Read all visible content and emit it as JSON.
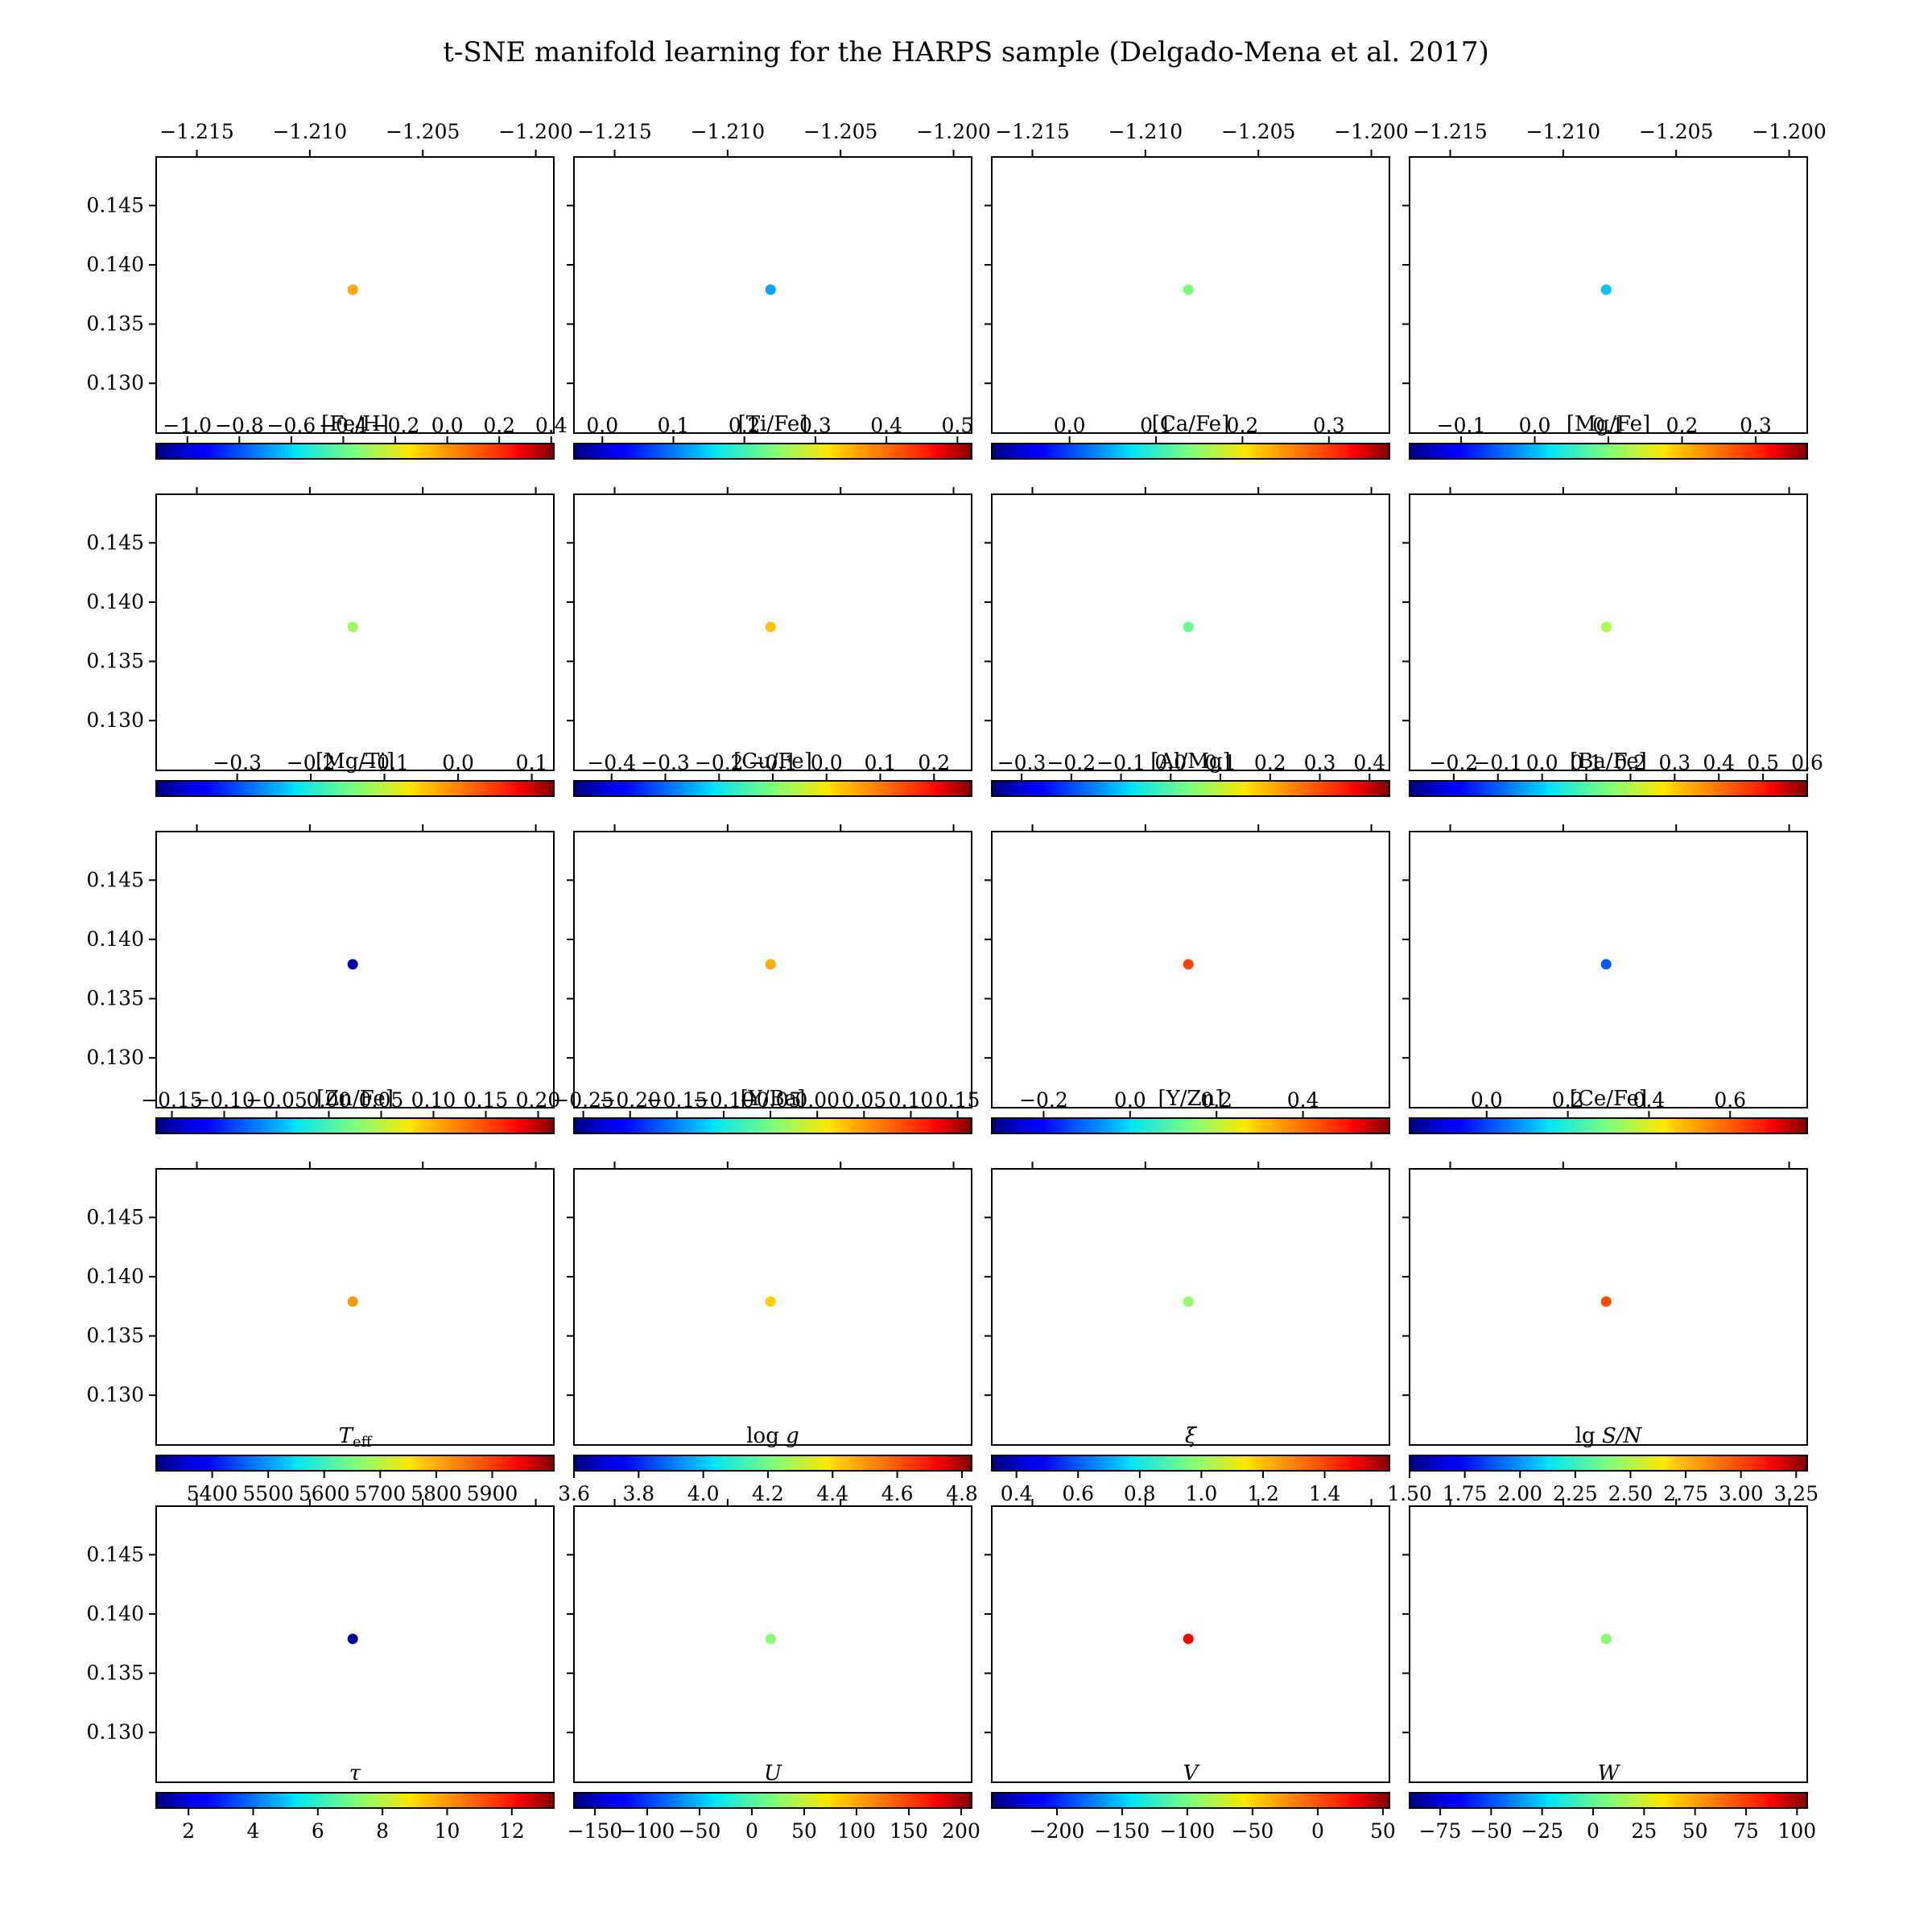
{
  "chart_data": {
    "type": "scatter",
    "title": "t-SNE manifold learning for the HARPS sample (Delgado-Mena et al. 2017)",
    "colormap": "jet",
    "x_ticks": [
      -1.215,
      -1.21,
      -1.205,
      -1.2
    ],
    "x_tick_labels": [
      "−1.215",
      "−1.210",
      "−1.205",
      "−1.200"
    ],
    "y_ticks": [
      0.13,
      0.135,
      0.14,
      0.145
    ],
    "y_tick_labels": [
      "0.130",
      "0.135",
      "0.140",
      "0.145"
    ],
    "xlim": [
      -1.2168,
      -1.1992
    ],
    "ylim": [
      0.1258,
      0.1491
    ],
    "point": {
      "x": -1.2081,
      "y": 0.1379
    },
    "panels": [
      {
        "label": "[Fe/H]",
        "color_value": 0.0,
        "cbar_range": [
          -1.12,
          0.41
        ],
        "cbar_ticks": [
          -1.0,
          -0.8,
          -0.6,
          -0.4,
          -0.2,
          0.0,
          0.2,
          0.4
        ],
        "cbar_tick_labels": [
          "−1.0",
          "−0.8",
          "−0.6",
          "−0.4",
          "−0.2",
          "0.0",
          "0.2",
          "0.4"
        ]
      },
      {
        "label": "[Ti/Fe]",
        "color_value": 0.12,
        "cbar_range": [
          -0.04,
          0.52
        ],
        "cbar_ticks": [
          0.0,
          0.1,
          0.2,
          0.3,
          0.4,
          0.5
        ],
        "cbar_tick_labels": [
          "0.0",
          "0.1",
          "0.2",
          "0.3",
          "0.4",
          "0.5"
        ]
      },
      {
        "label": "[Ca/Fe]",
        "color_value": 0.14,
        "cbar_range": [
          -0.09,
          0.37
        ],
        "cbar_ticks": [
          0.0,
          0.1,
          0.2,
          0.3
        ],
        "cbar_tick_labels": [
          "0.0",
          "0.1",
          "0.2",
          "0.3"
        ]
      },
      {
        "label": "[Mg/Fe]",
        "color_value": 0.0,
        "cbar_range": [
          -0.17,
          0.37
        ],
        "cbar_ticks": [
          -0.1,
          0.0,
          0.1,
          0.2,
          0.3
        ],
        "cbar_tick_labels": [
          "−0.1",
          "0.0",
          "0.1",
          "0.2",
          "0.3"
        ]
      },
      {
        "label": "[Mg/Ti]",
        "color_value": -0.12,
        "cbar_range": [
          -0.41,
          0.13
        ],
        "cbar_ticks": [
          -0.3,
          -0.2,
          -0.1,
          0.0,
          0.1
        ],
        "cbar_tick_labels": [
          "−0.3",
          "−0.2",
          "−0.1",
          "0.0",
          "0.1"
        ]
      },
      {
        "label": "[Cu/Fe]",
        "color_value": 0.05,
        "cbar_range": [
          -0.47,
          0.27
        ],
        "cbar_ticks": [
          -0.4,
          -0.3,
          -0.2,
          -0.1,
          0.0,
          0.1,
          0.2
        ],
        "cbar_tick_labels": [
          "−0.4",
          "−0.3",
          "−0.2",
          "−0.1",
          "0.0",
          "0.1",
          "0.2"
        ]
      },
      {
        "label": "[Al/Mg]",
        "color_value": 0.02,
        "cbar_range": [
          -0.36,
          0.44
        ],
        "cbar_ticks": [
          -0.3,
          -0.2,
          -0.1,
          0.0,
          0.1,
          0.2,
          0.3,
          0.4
        ],
        "cbar_tick_labels": [
          "−0.3",
          "−0.2",
          "−0.1",
          "0.0",
          "0.1",
          "0.2",
          "0.3",
          "0.4"
        ]
      },
      {
        "label": "[Ba/Fe]",
        "color_value": 0.2,
        "cbar_range": [
          -0.3,
          0.6
        ],
        "cbar_ticks": [
          -0.2,
          -0.1,
          0.0,
          0.1,
          0.2,
          0.3,
          0.4,
          0.5,
          0.6
        ],
        "cbar_tick_labels": [
          "−0.2",
          "−0.1",
          "0.0",
          "0.1",
          "0.2",
          "0.3",
          "0.4",
          "0.5",
          "0.6"
        ]
      },
      {
        "label": "[Zn/Fe]",
        "color_value": -0.15,
        "cbar_range": [
          -0.165,
          0.215
        ],
        "cbar_ticks": [
          -0.15,
          -0.1,
          -0.05,
          0.0,
          0.05,
          0.1,
          0.15,
          0.2
        ],
        "cbar_tick_labels": [
          "−0.15",
          "−0.10",
          "−0.05",
          "0.00",
          "0.05",
          "0.10",
          "0.15",
          "0.20"
        ]
      },
      {
        "label": "[Y/Ba]",
        "color_value": 0.05,
        "cbar_range": [
          -0.26,
          0.165
        ],
        "cbar_ticks": [
          -0.25,
          -0.2,
          -0.15,
          -0.1,
          -0.05,
          0.0,
          0.05,
          0.1,
          0.15
        ],
        "cbar_tick_labels": [
          "−0.25",
          "−0.20",
          "−0.15",
          "−0.10",
          "−0.05",
          "0.00",
          "0.05",
          "0.10",
          "0.15"
        ]
      },
      {
        "label": "[Y/Zn]",
        "color_value": 0.45,
        "cbar_range": [
          -0.32,
          0.6
        ],
        "cbar_ticks": [
          -0.2,
          0.0,
          0.2,
          0.4
        ],
        "cbar_tick_labels": [
          "−0.2",
          "0.0",
          "0.2",
          "0.4"
        ]
      },
      {
        "label": "[Ce/Fe]",
        "color_value": 0.02,
        "cbar_range": [
          -0.19,
          0.79
        ],
        "cbar_ticks": [
          0.0,
          0.2,
          0.4,
          0.6
        ],
        "cbar_tick_labels": [
          "0.0",
          "0.2",
          "0.4",
          "0.6"
        ]
      },
      {
        "label": "T_eff",
        "color_value": 5830,
        "cbar_range": [
          5300,
          6010
        ],
        "cbar_ticks": [
          5400,
          5500,
          5600,
          5700,
          5800,
          5900
        ],
        "cbar_tick_labels": [
          "5400",
          "5500",
          "5600",
          "5700",
          "5800",
          "5900"
        ]
      },
      {
        "label": "log g",
        "color_value": 4.45,
        "cbar_range": [
          3.6,
          4.83
        ],
        "cbar_ticks": [
          3.6,
          3.8,
          4.0,
          4.2,
          4.4,
          4.6,
          4.8
        ],
        "cbar_tick_labels": [
          "3.6",
          "3.8",
          "4.0",
          "4.2",
          "4.4",
          "4.6",
          "4.8"
        ]
      },
      {
        "label": "ξ",
        "color_value": 1.0,
        "cbar_range": [
          0.32,
          1.61
        ],
        "cbar_ticks": [
          0.4,
          0.6,
          0.8,
          1.0,
          1.2,
          1.4
        ],
        "cbar_tick_labels": [
          "0.4",
          "0.6",
          "0.8",
          "1.0",
          "1.2",
          "1.4"
        ]
      },
      {
        "label": "lg S/N",
        "color_value": 3.0,
        "cbar_range": [
          1.5,
          3.3
        ],
        "cbar_ticks": [
          1.5,
          1.75,
          2.0,
          2.25,
          2.5,
          2.75,
          3.0,
          3.25
        ],
        "cbar_tick_labels": [
          "1.50",
          "1.75",
          "2.00",
          "2.25",
          "2.50",
          "2.75",
          "3.00",
          "3.25"
        ]
      },
      {
        "label": "τ",
        "color_value": 1.3,
        "cbar_range": [
          1.0,
          13.3
        ],
        "cbar_ticks": [
          2,
          4,
          6,
          8,
          10,
          12
        ],
        "cbar_tick_labels": [
          "2",
          "4",
          "6",
          "8",
          "10",
          "12"
        ]
      },
      {
        "label": "U",
        "color_value": 23,
        "cbar_range": [
          -170,
          210
        ],
        "cbar_ticks": [
          -150,
          -100,
          -50,
          0,
          50,
          100,
          150,
          200
        ],
        "cbar_tick_labels": [
          "−150",
          "−100",
          "−50",
          "0",
          "50",
          "100",
          "150",
          "200"
        ]
      },
      {
        "label": "V",
        "color_value": 25,
        "cbar_range": [
          -250,
          55
        ],
        "cbar_ticks": [
          -200,
          -150,
          -100,
          -50,
          0,
          50
        ],
        "cbar_tick_labels": [
          "−200",
          "−150",
          "−100",
          "−50",
          "0",
          "50"
        ]
      },
      {
        "label": "W",
        "color_value": 10,
        "cbar_range": [
          -90,
          105
        ],
        "cbar_ticks": [
          -75,
          -50,
          -25,
          0,
          25,
          50,
          75,
          100
        ],
        "cbar_tick_labels": [
          "−75",
          "−50",
          "−25",
          "0",
          "25",
          "50",
          "75",
          "100"
        ]
      }
    ]
  }
}
